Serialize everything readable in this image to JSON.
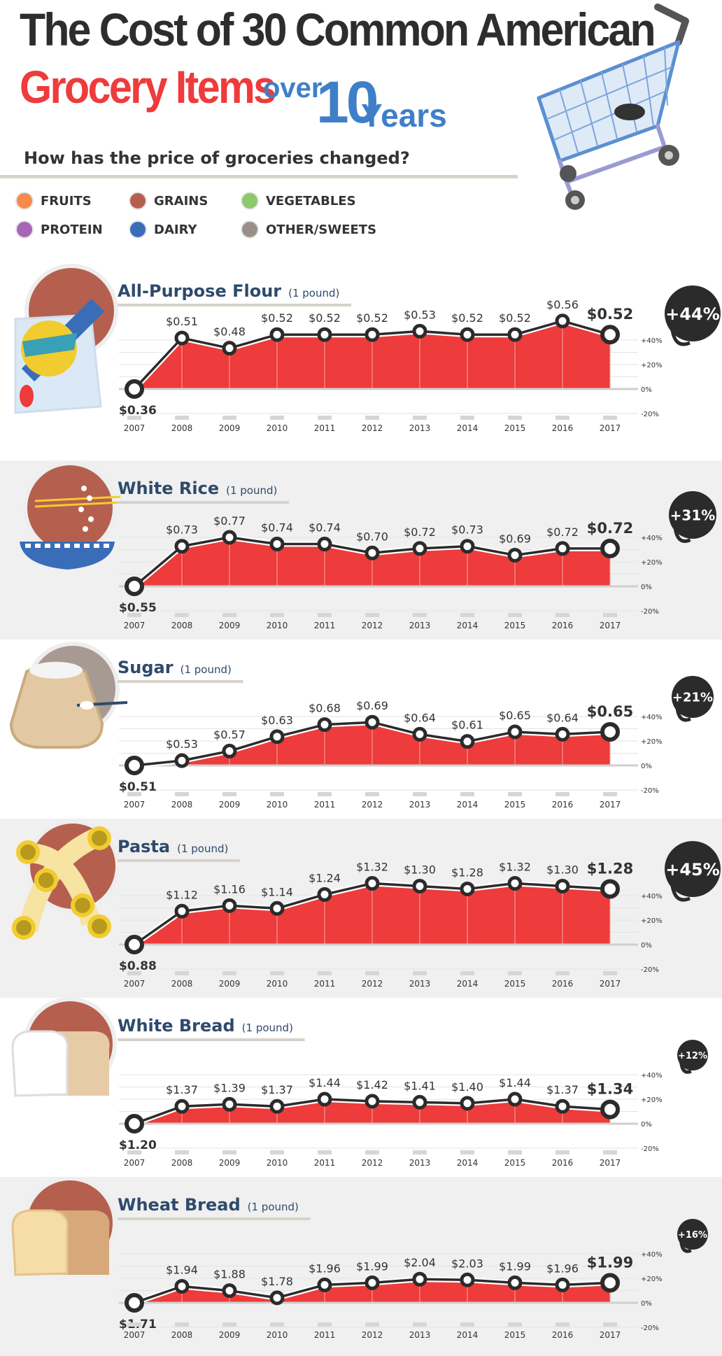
{
  "header": {
    "title_line1": "The Cost of 30 Common American",
    "title_line2_red": "Grocery Items",
    "title_over": "over",
    "title_10": "10",
    "title_years": "Years",
    "subtitle": "How has the price of groceries changed?"
  },
  "legend": [
    {
      "label": "FRUITS",
      "color": "#f58a4b"
    },
    {
      "label": "GRAINS",
      "color": "#b5604f"
    },
    {
      "label": "VEGETABLES",
      "color": "#8cc96a"
    },
    {
      "label": "PROTEIN",
      "color": "#a865b5"
    },
    {
      "label": "DAIRY",
      "color": "#3a6db8"
    },
    {
      "label": "OTHER/SWEETS",
      "color": "#9a8f8a"
    }
  ],
  "colors": {
    "fill": "#ee3b3b",
    "line": "#2b2b2b",
    "badge": "#2b2b2b",
    "name": "#2e4a6b",
    "grains_circle": "#b5604f"
  },
  "chart_data": [
    {
      "type": "line",
      "title": "All-Purpose Flour",
      "unit": "(1 pound)",
      "x": [
        "2007",
        "2008",
        "2009",
        "2010",
        "2011",
        "2012",
        "2013",
        "2014",
        "2015",
        "2016",
        "2017"
      ],
      "values": [
        0.36,
        0.51,
        0.48,
        0.52,
        0.52,
        0.52,
        0.53,
        0.52,
        0.52,
        0.56,
        0.52
      ],
      "labels": [
        "$0.36",
        "$0.51",
        "$0.48",
        "$0.52",
        "$0.52",
        "$0.52",
        "$0.53",
        "$0.52",
        "$0.52",
        "$0.56",
        "$0.52"
      ],
      "change": "+44%",
      "y_ticks": [
        "+40%",
        "+20%",
        "0%",
        "-20%"
      ],
      "ylim": [
        -20,
        50
      ]
    },
    {
      "type": "line",
      "title": "White Rice",
      "unit": "(1 pound)",
      "x": [
        "2007",
        "2008",
        "2009",
        "2010",
        "2011",
        "2012",
        "2013",
        "2014",
        "2015",
        "2016",
        "2017"
      ],
      "values": [
        0.55,
        0.73,
        0.77,
        0.74,
        0.74,
        0.7,
        0.72,
        0.73,
        0.69,
        0.72,
        0.72
      ],
      "labels": [
        "$0.55",
        "$0.73",
        "$0.77",
        "$0.74",
        "$0.74",
        "$0.70",
        "$0.72",
        "$0.73",
        "$0.69",
        "$0.72",
        "$0.72"
      ],
      "change": "+31%",
      "y_ticks": [
        "+40%",
        "+20%",
        "0%",
        "-20%"
      ],
      "ylim": [
        -20,
        50
      ]
    },
    {
      "type": "line",
      "title": "Sugar",
      "unit": "(1 pound)",
      "x": [
        "2007",
        "2008",
        "2009",
        "2010",
        "2011",
        "2012",
        "2013",
        "2014",
        "2015",
        "2016",
        "2017"
      ],
      "values": [
        0.51,
        0.53,
        0.57,
        0.63,
        0.68,
        0.69,
        0.64,
        0.61,
        0.65,
        0.64,
        0.65
      ],
      "labels": [
        "$0.51",
        "$0.53",
        "$0.57",
        "$0.63",
        "$0.68",
        "$0.69",
        "$0.64",
        "$0.61",
        "$0.65",
        "$0.64",
        "$0.65"
      ],
      "change": "+21%",
      "y_ticks": [
        "+40%",
        "+20%",
        "0%",
        "-20%"
      ],
      "ylim": [
        -20,
        50
      ]
    },
    {
      "type": "line",
      "title": "Pasta",
      "unit": "(1 pound)",
      "x": [
        "2007",
        "2008",
        "2009",
        "2010",
        "2011",
        "2012",
        "2013",
        "2014",
        "2015",
        "2016",
        "2017"
      ],
      "values": [
        0.88,
        1.12,
        1.16,
        1.14,
        1.24,
        1.32,
        1.3,
        1.28,
        1.32,
        1.3,
        1.28
      ],
      "labels": [
        "$0.88",
        "$1.12",
        "$1.16",
        "$1.14",
        "$1.24",
        "$1.32",
        "$1.30",
        "$1.28",
        "$1.32",
        "$1.30",
        "$1.28"
      ],
      "change": "+45%",
      "y_ticks": [
        "+40%",
        "+20%",
        "0%",
        "-20%"
      ],
      "ylim": [
        -20,
        50
      ]
    },
    {
      "type": "line",
      "title": "White Bread",
      "unit": "(1 pound)",
      "x": [
        "2007",
        "2008",
        "2009",
        "2010",
        "2011",
        "2012",
        "2013",
        "2014",
        "2015",
        "2016",
        "2017"
      ],
      "values": [
        1.2,
        1.37,
        1.39,
        1.37,
        1.44,
        1.42,
        1.41,
        1.4,
        1.44,
        1.37,
        1.34
      ],
      "labels": [
        "$1.20",
        "$1.37",
        "$1.39",
        "$1.37",
        "$1.44",
        "$1.42",
        "$1.41",
        "$1.40",
        "$1.44",
        "$1.37",
        "$1.34"
      ],
      "change": "+12%",
      "y_ticks": [
        "+40%",
        "+20%",
        "0%",
        "-20%"
      ],
      "ylim": [
        -20,
        50
      ]
    },
    {
      "type": "line",
      "title": "Wheat Bread",
      "unit": "(1 pound)",
      "x": [
        "2007",
        "2008",
        "2009",
        "2010",
        "2011",
        "2012",
        "2013",
        "2014",
        "2015",
        "2016",
        "2017"
      ],
      "values": [
        1.71,
        1.94,
        1.88,
        1.78,
        1.96,
        1.99,
        2.04,
        2.03,
        1.99,
        1.96,
        1.99
      ],
      "labels": [
        "$1.71",
        "$1.94",
        "$1.88",
        "$1.78",
        "$1.96",
        "$1.99",
        "$2.04",
        "$2.03",
        "$1.99",
        "$1.96",
        "$1.99"
      ],
      "change": "+16%",
      "y_ticks": [
        "+40%",
        "+20%",
        "0%",
        "-20%"
      ],
      "ylim": [
        -20,
        50
      ]
    }
  ]
}
